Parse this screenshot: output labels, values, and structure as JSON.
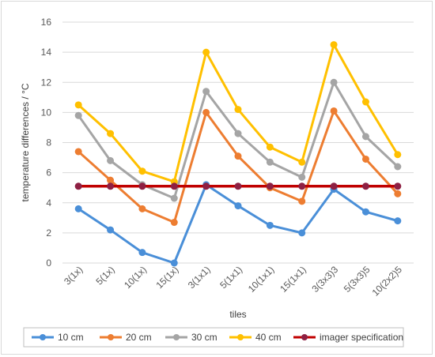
{
  "chart_data": {
    "type": "line",
    "title": "",
    "xlabel": "tiles",
    "ylabel": "temperature differences / °C",
    "categories": [
      "3(1x)",
      "5(1x)",
      "10(1x)",
      "15(1x)",
      "3(1x1)",
      "5(1x1)",
      "10(1x1)",
      "15(1x1)",
      "3(3x3)3",
      "5(3x3)5",
      "10(2x2)5"
    ],
    "ylim": [
      0,
      16
    ],
    "yticks": [
      0,
      2,
      4,
      6,
      8,
      10,
      12,
      14,
      16
    ],
    "grid": "horizontal",
    "legend_position": "bottom",
    "series": [
      {
        "name": "10 cm",
        "color": "#4a8fd8",
        "values": [
          3.6,
          2.2,
          0.7,
          0.0,
          5.2,
          3.8,
          2.5,
          2.0,
          4.9,
          3.4,
          2.8
        ]
      },
      {
        "name": "20 cm",
        "color": "#ed7d31",
        "values": [
          7.4,
          5.5,
          3.6,
          2.7,
          10.0,
          7.1,
          5.0,
          4.1,
          10.1,
          6.9,
          4.6
        ]
      },
      {
        "name": "30 cm",
        "color": "#a5a5a5",
        "values": [
          9.8,
          6.8,
          5.2,
          4.3,
          11.4,
          8.6,
          6.7,
          5.7,
          12.0,
          8.4,
          6.4
        ]
      },
      {
        "name": "40 cm",
        "color": "#ffc000",
        "values": [
          10.5,
          8.6,
          6.1,
          5.4,
          14.0,
          10.2,
          7.7,
          6.7,
          14.5,
          10.7,
          7.2
        ]
      },
      {
        "name": "imager specification",
        "color": "#c00000",
        "marker_color": "#8e2043",
        "values": [
          5.1,
          5.1,
          5.1,
          5.1,
          5.1,
          5.1,
          5.1,
          5.1,
          5.1,
          5.1,
          5.1
        ]
      }
    ]
  }
}
